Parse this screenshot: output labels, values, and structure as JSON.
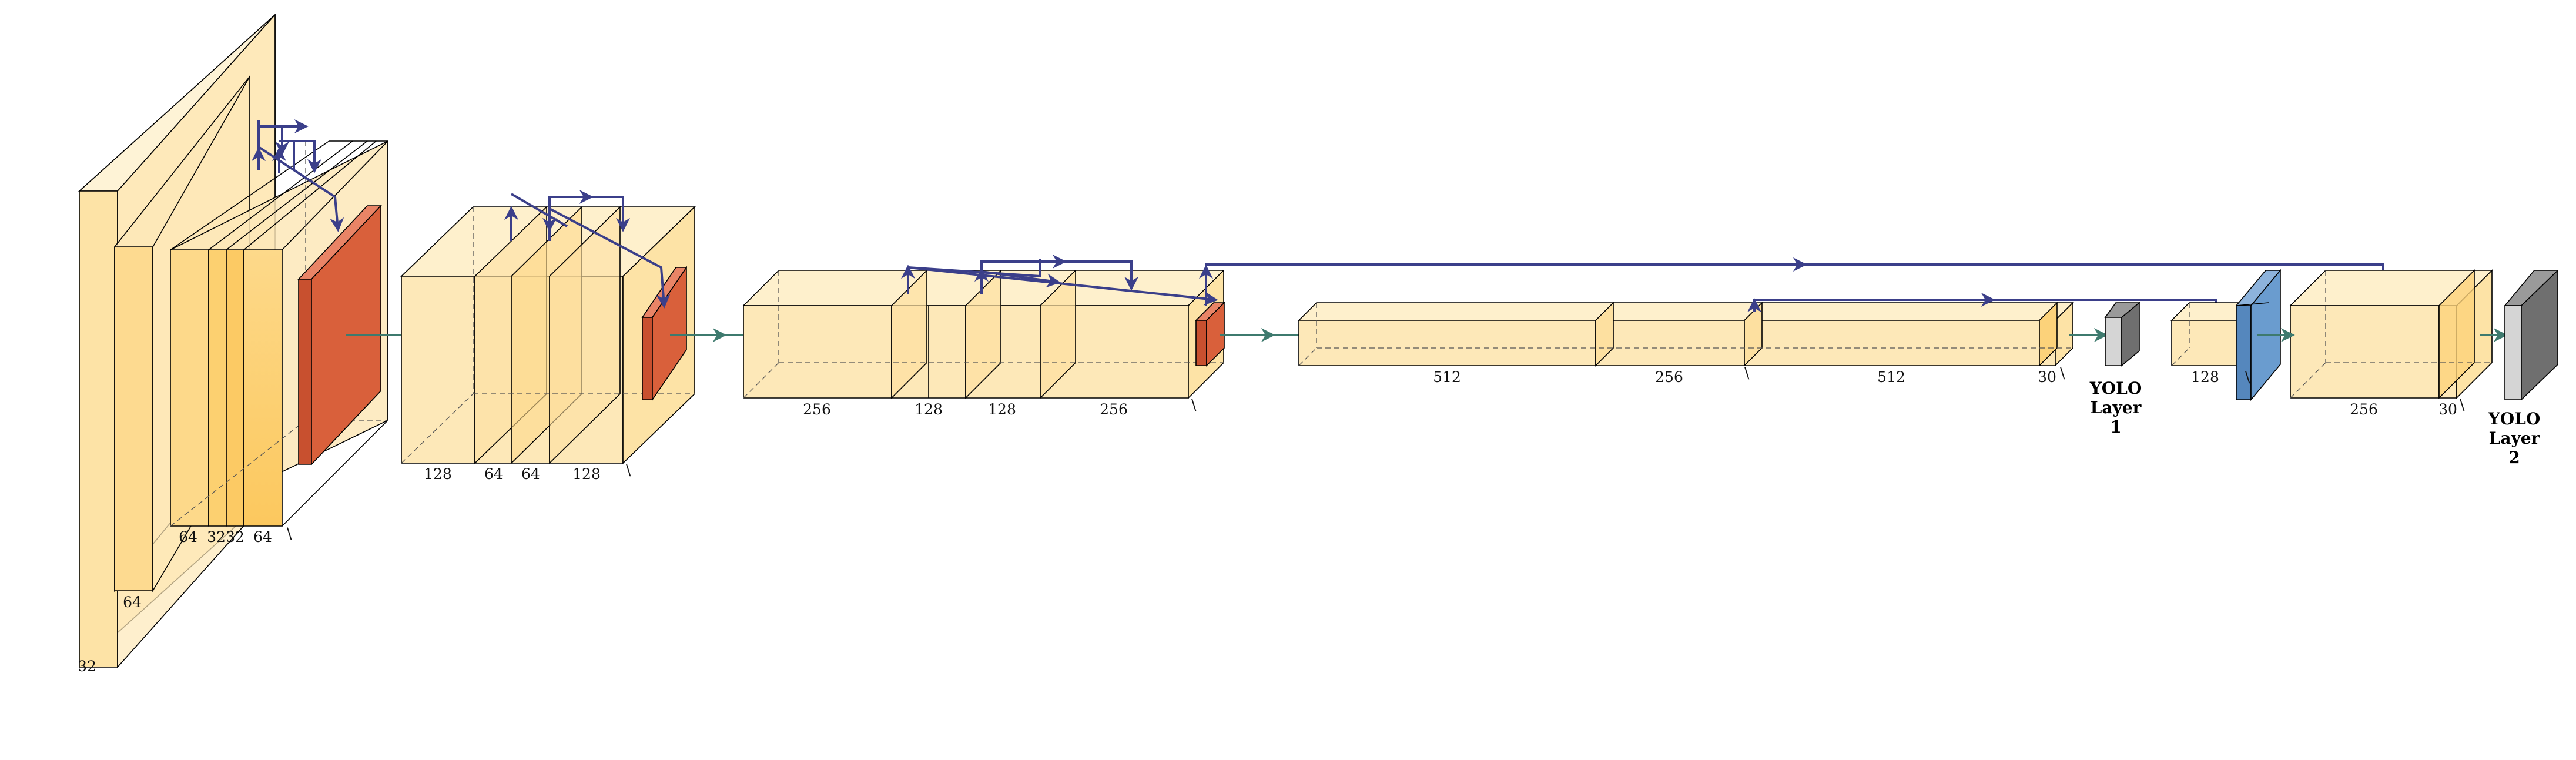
{
  "diagram": {
    "stage1": {
      "labels": [
        "32",
        "64",
        "64",
        "32",
        "32",
        "64"
      ],
      "mark": "\\"
    },
    "stage2": {
      "labels": [
        "128",
        "64",
        "64",
        "128"
      ],
      "mark": "\\"
    },
    "stage3": {
      "labels": [
        "256",
        "128",
        "128",
        "256"
      ],
      "mark": "\\"
    },
    "stage4": {
      "labels": [
        "512",
        "256",
        "512",
        "30"
      ],
      "mark": "\\"
    },
    "stage5": {
      "labels": [
        "128",
        "256",
        "30"
      ],
      "mark": "\\"
    },
    "yolo1": {
      "lines": [
        "YOLO",
        "Layer",
        "1"
      ]
    },
    "yolo2": {
      "lines": [
        "YOLO",
        "Layer",
        "2"
      ]
    },
    "colors": {
      "conv_layer": "#fde8b8",
      "conv_layer_dark": "#fcd67e",
      "pool_layer": "#d9603b",
      "upsample_layer": "#6a9ccf",
      "yolo_output": "#bdbdbd",
      "skip_connection": "#3b3f8a",
      "forward_arrow": "#3e7a6e"
    }
  }
}
